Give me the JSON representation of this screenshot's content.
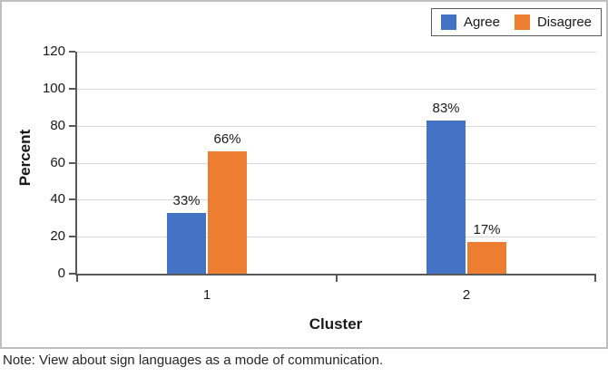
{
  "figure": {
    "note": "Note: View about sign languages as a mode of communication."
  },
  "chart_data": {
    "type": "bar",
    "title": "",
    "categories": [
      "1",
      "2"
    ],
    "series": [
      {
        "name": "Agree",
        "color": "#4472C4",
        "values": [
          33,
          83
        ],
        "labels": [
          "33%",
          "83%"
        ]
      },
      {
        "name": "Disagree",
        "color": "#ED7D31",
        "values": [
          66,
          17
        ],
        "labels": [
          "66%",
          "17%"
        ]
      }
    ],
    "xlabel": "Cluster",
    "ylabel": "Percent",
    "ylim": [
      0,
      120
    ],
    "yticks": [
      0,
      20,
      40,
      60,
      80,
      100,
      120
    ],
    "grid": "horizontal",
    "legend_position": "top-right",
    "colors": {
      "axis": "#595959",
      "gridline": "#D9D9D9",
      "figure_border": "#BFBFBF",
      "text": "#1A1A1A"
    }
  }
}
